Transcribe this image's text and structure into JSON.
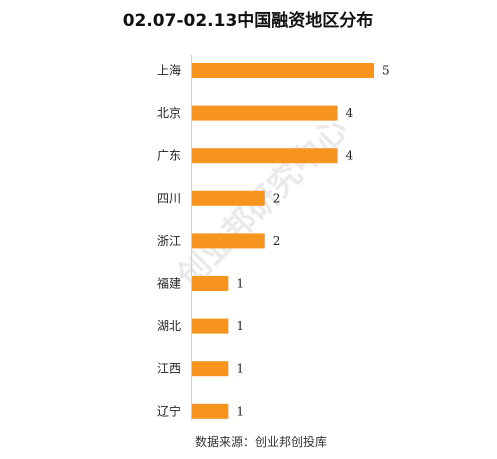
{
  "chart_data": {
    "type": "bar",
    "orientation": "horizontal",
    "title": "02.07-02.13中国融资地区分布",
    "categories": [
      "上海",
      "北京",
      "广东",
      "四川",
      "浙江",
      "福建",
      "湖北",
      "江西",
      "辽宁"
    ],
    "values": [
      5,
      4,
      4,
      2,
      2,
      1,
      1,
      1,
      1
    ],
    "xlim": [
      0,
      5
    ],
    "bar_color": "#F7941D",
    "grid": false,
    "legend": "none",
    "source": "数据来源：创业邦创投库",
    "watermark": "创业邦研究中心"
  }
}
